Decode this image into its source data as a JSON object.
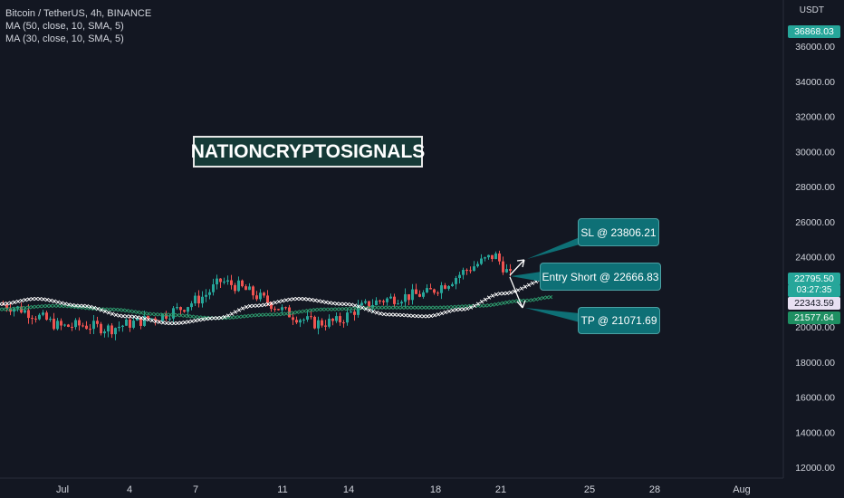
{
  "legend": {
    "symbol": "Bitcoin / TetherUS, 4h, BINANCE",
    "ma1": "MA (50, close, 10, SMA, 5)",
    "ma2": "MA (30, close, 10, SMA, 5)"
  },
  "yaxis": {
    "unit": "USDT",
    "ticks": [
      "36000.00",
      "34000.00",
      "32000.00",
      "30000.00",
      "28000.00",
      "26000.00",
      "24000.00",
      "22000.00",
      "20000.00",
      "18000.00",
      "16000.00",
      "14000.00",
      "12000.00"
    ]
  },
  "xaxis": {
    "ticks": [
      "Jul",
      "4",
      "7",
      "11",
      "14",
      "18",
      "21",
      "25",
      "28",
      "Aug"
    ]
  },
  "watermark": "NATIONCRYPTOSIGNALS",
  "price_tags": {
    "top": "36868.03",
    "current": "22795.50",
    "countdown": "03:27:35",
    "ma_white": "22343.59",
    "ma_green": "21577.64"
  },
  "callouts": {
    "sl": "SL @ 23806.21",
    "entry": "Entry Short @ 22666.83",
    "tp": "TP @ 21071.69"
  },
  "colors": {
    "background": "#131722",
    "up": "#26a69a",
    "down": "#ef5350",
    "ma_white": "#ffffff",
    "ma_green": "#2e9e6f",
    "callout": "#0e7076"
  }
}
